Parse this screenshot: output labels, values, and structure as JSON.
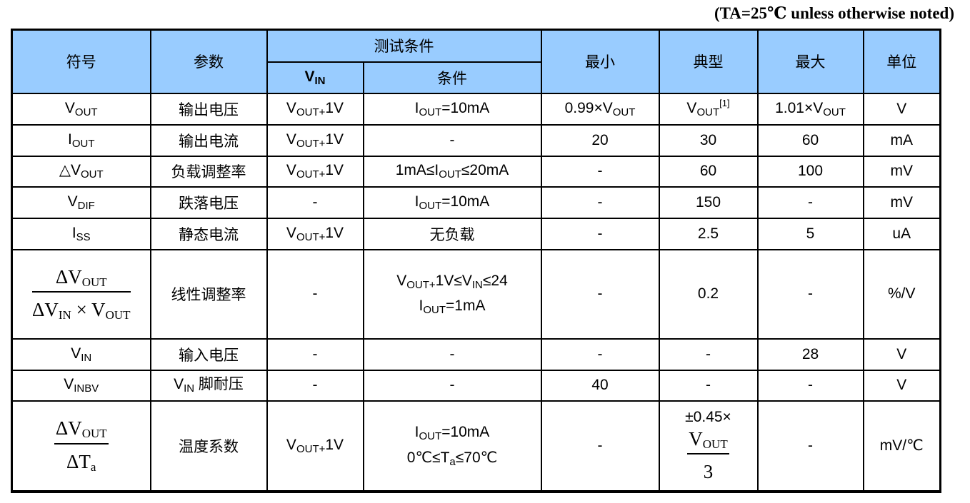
{
  "note": "(TA=25℃ unless otherwise noted)",
  "colors": {
    "header_bg": "#99ccff",
    "border": "#000000"
  },
  "header": {
    "symbol": "符号",
    "parameter": "参数",
    "test_conditions": "测试条件",
    "vin": [
      [
        "V",
        "bold"
      ],
      [
        "IN",
        "sub bold"
      ]
    ],
    "condition": "条件",
    "min": "最小",
    "typ": "典型",
    "max": "最大",
    "unit": "单位"
  },
  "rows": [
    [
      [
        [
          [
            "V"
          ],
          [
            "OUT",
            "sub"
          ]
        ]
      ],
      "输出电压",
      [
        [
          [
            "V"
          ],
          [
            "OUT+",
            "sub"
          ],
          [
            "1V"
          ]
        ]
      ],
      [
        [
          [
            "I"
          ],
          [
            "OUT",
            "sub"
          ],
          [
            "=10mA"
          ]
        ]
      ],
      [
        [
          [
            "0.99×V"
          ],
          [
            "OUT",
            "sub"
          ]
        ]
      ],
      [
        [
          [
            "V"
          ],
          [
            "OUT",
            "sub"
          ],
          [
            "[1]",
            "sup"
          ]
        ]
      ],
      [
        [
          [
            "1.01×V"
          ],
          [
            "OUT",
            "sub"
          ]
        ]
      ],
      "V"
    ],
    [
      [
        [
          [
            "I"
          ],
          [
            "OUT",
            "sub"
          ]
        ]
      ],
      "输出电流",
      [
        [
          [
            "V"
          ],
          [
            "OUT+",
            "sub"
          ],
          [
            "1V"
          ]
        ]
      ],
      "-",
      "20",
      "30",
      "60",
      "mA"
    ],
    [
      [
        [
          [
            "△V"
          ],
          [
            "OUT",
            "sub"
          ]
        ]
      ],
      "负载调整率",
      [
        [
          [
            "V"
          ],
          [
            "OUT+",
            "sub"
          ],
          [
            "1V"
          ]
        ]
      ],
      [
        [
          [
            "1mA≤I"
          ],
          [
            "OUT",
            "sub"
          ],
          [
            "≤20mA"
          ]
        ]
      ],
      "-",
      "60",
      "100",
      "mV"
    ],
    [
      [
        [
          [
            "V"
          ],
          [
            "DIF",
            "sub"
          ]
        ]
      ],
      "跌落电压",
      "-",
      [
        [
          [
            "I"
          ],
          [
            "OUT",
            "sub"
          ],
          [
            "=10mA"
          ]
        ]
      ],
      "-",
      "150",
      "-",
      "mV"
    ],
    [
      [
        [
          [
            "I"
          ],
          [
            "SS",
            "sub"
          ]
        ]
      ],
      "静态电流",
      [
        [
          [
            "V"
          ],
          [
            "OUT+",
            "sub"
          ],
          [
            "1V"
          ]
        ]
      ],
      "无负载",
      "-",
      "2.5",
      "5",
      "uA"
    ],
    [
      [
        {
          "num": [
            [
              "ΔV"
            ],
            [
              "OUT",
              "sub"
            ]
          ],
          "den": [
            [
              "ΔV"
            ],
            [
              "IN",
              "sub"
            ],
            [
              " × V"
            ],
            [
              "OUT",
              "sub"
            ]
          ]
        }
      ],
      "线性调整率",
      "-",
      [
        [
          [
            "V"
          ],
          [
            "OUT+",
            "sub"
          ],
          [
            "1V≤V"
          ],
          [
            "IN",
            "sub"
          ],
          [
            "≤24"
          ]
        ],
        [
          [
            "I"
          ],
          [
            "OUT",
            "sub"
          ],
          [
            "=1mA"
          ]
        ]
      ],
      "-",
      "0.2",
      "-",
      "%/V"
    ],
    [
      [
        [
          [
            "V"
          ],
          [
            "IN",
            "sub"
          ]
        ]
      ],
      "输入电压",
      "-",
      "-",
      "-",
      "-",
      "28",
      "V"
    ],
    [
      [
        [
          [
            "V"
          ],
          [
            "INBV",
            "sub"
          ]
        ]
      ],
      [
        [
          [
            "V"
          ],
          [
            "IN",
            "sub"
          ],
          [
            " 脚耐压"
          ]
        ]
      ],
      "-",
      "-",
      "40",
      "-",
      "-",
      "V"
    ],
    [
      [
        {
          "num": [
            [
              "ΔV"
            ],
            [
              "OUT",
              "sub"
            ]
          ],
          "den": [
            [
              "ΔT"
            ],
            [
              "a",
              "sub"
            ]
          ]
        }
      ],
      "温度系数",
      [
        [
          [
            "V"
          ],
          [
            "OUT+",
            "sub"
          ],
          [
            "1V"
          ]
        ]
      ],
      [
        [
          [
            "I"
          ],
          [
            "OUT",
            "sub"
          ],
          [
            "=10mA"
          ]
        ],
        [
          [
            "0℃≤T"
          ],
          [
            "a",
            "sub"
          ],
          [
            "≤70℃"
          ]
        ]
      ],
      "-",
      [
        [
          [
            "±0.45×"
          ]
        ],
        {
          "num": [
            [
              "V"
            ],
            [
              "OUT",
              "sub"
            ]
          ],
          "den": [
            [
              "3"
            ]
          ]
        }
      ],
      "-",
      "mV/℃"
    ]
  ],
  "row_names": [
    "vout",
    "iout",
    "load-regulation",
    "vdif",
    "iss",
    "line-regulation",
    "vin",
    "vinbv",
    "temp-coefficient"
  ]
}
